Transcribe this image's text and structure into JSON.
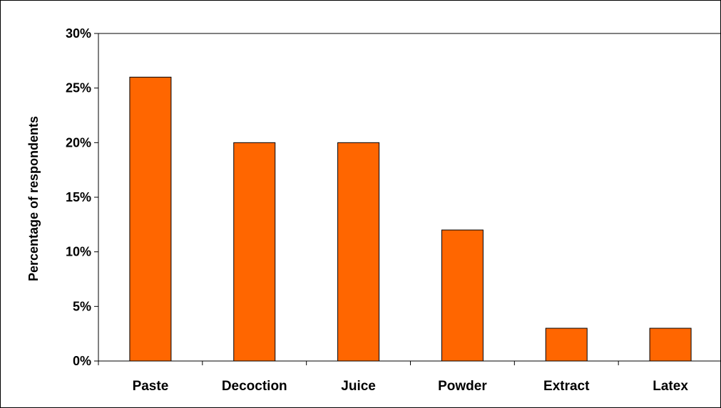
{
  "chart_data": {
    "type": "bar",
    "categories": [
      "Paste",
      "Decoction",
      "Juice",
      "Powder",
      "Extract",
      "Latex"
    ],
    "values": [
      26,
      20,
      20,
      12,
      3,
      3
    ],
    "ylabel": "Percentage of respondents",
    "xlabel": "",
    "ylim": [
      0,
      30
    ],
    "yticks": [
      0,
      5,
      10,
      15,
      20,
      25,
      30
    ],
    "ytick_labels": [
      "0%",
      "5%",
      "10%",
      "15%",
      "20%",
      "25%",
      "30%"
    ],
    "grid": false,
    "legend": "none",
    "colors": {
      "bar": "#ff6600",
      "bar_border": "#000000",
      "axis": "#000000",
      "background": "#ffffff"
    }
  }
}
